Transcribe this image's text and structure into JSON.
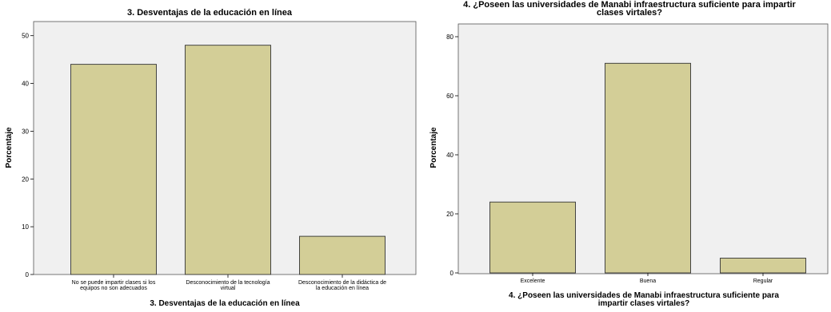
{
  "colors": {
    "plot_bg": "#f0f0f0",
    "bar_fill": "#d3ce97",
    "bar_stroke": "#333333"
  },
  "chart_data": [
    {
      "type": "bar",
      "title": "3. Desventajas de la educación en línea",
      "xlabel": "3. Desventajas de la educación en línea",
      "ylabel": "Porcentaje",
      "ylim": [
        0,
        50
      ],
      "yticks": [
        "0",
        "10",
        "20",
        "30",
        "40",
        "50"
      ],
      "categories": [
        [
          "No se puede impartir clases si los",
          "equipos no son adecuados"
        ],
        [
          "Desconocimiento de la tecnología",
          "virtual"
        ],
        [
          "Desconocimiento de la didáctica de",
          "la educación en línea"
        ]
      ],
      "values": [
        44,
        48,
        8
      ]
    },
    {
      "type": "bar",
      "title": [
        "4. ¿Poseen las universidades de Manabi infraestructura suficiente para impartir",
        "clases virtales?"
      ],
      "xlabel": [
        "4. ¿Poseen las universidades de Manabi infraestructura suficiente para",
        "impartir clases virtales?"
      ],
      "ylabel": "Porcentaje",
      "ylim": [
        0,
        80
      ],
      "yticks": [
        "0",
        "20",
        "40",
        "60",
        "80"
      ],
      "categories": [
        [
          "Excelente"
        ],
        [
          "Buena"
        ],
        [
          "Regular"
        ]
      ],
      "values": [
        24,
        71,
        5
      ]
    }
  ]
}
